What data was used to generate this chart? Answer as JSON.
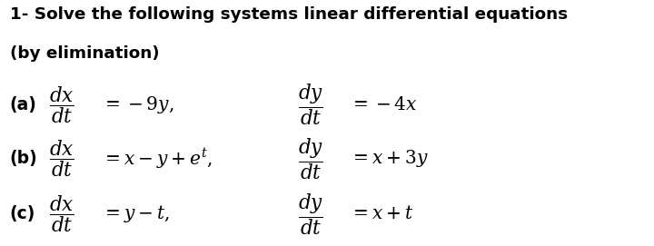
{
  "background_color": "#ffffff",
  "text_color": "#000000",
  "title_line1": "1- Solve the following systems linear differential equations",
  "title_line2": "(by elimination)",
  "title_fontsize": 13.2,
  "math_fontsize": 15.5,
  "label_fontsize": 13.5,
  "rhs_fontsize": 14.5,
  "label_a": "(a)",
  "label_b": "(b)",
  "label_c": "(c)",
  "frac_a1": "$\\dfrac{dx}{dt}$",
  "rhs_a1": "$= -9y,$",
  "frac_a2": "$\\dfrac{dy}{dt}$",
  "rhs_a2": "$= -4x$",
  "frac_b1": "$\\dfrac{dx}{dt}$",
  "rhs_b1": "$= x - y + e^{t},$",
  "frac_b2": "$\\dfrac{dy}{dt}$",
  "rhs_b2": "$= x + 3y$",
  "frac_c1": "$\\dfrac{dx}{dt}$",
  "rhs_c1": "$= y - t,$",
  "frac_c2": "$\\dfrac{dy}{dt}$",
  "rhs_c2": "$= x + t$"
}
